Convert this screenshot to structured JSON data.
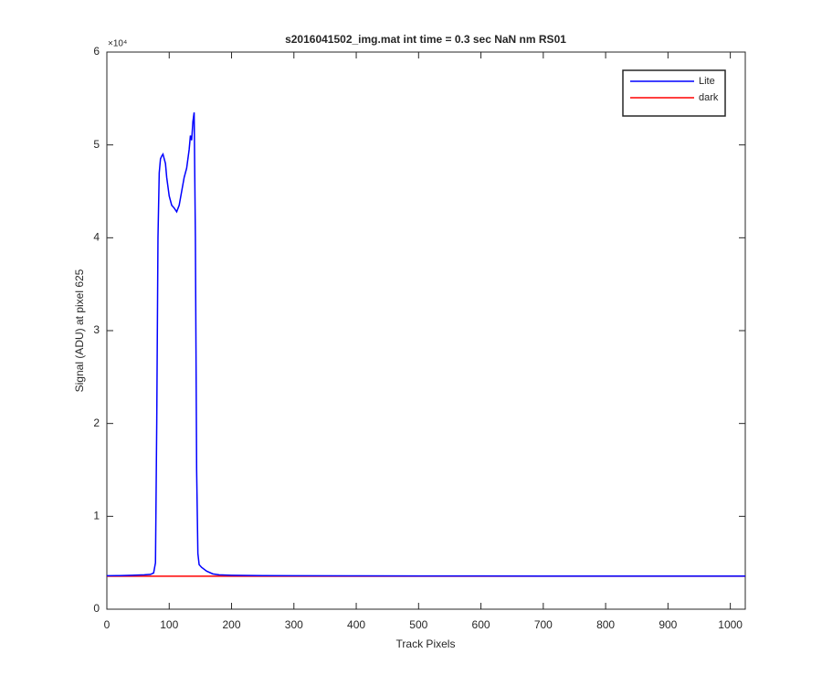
{
  "chart_data": {
    "type": "line",
    "title": "s2016041502_img.mat int time = 0.3 sec  NaN nm RS01",
    "x_label": "Track Pixels",
    "y_label": "Signal (ADU) at pixel 625",
    "y_exponent_label": "×10⁴",
    "x": [
      0,
      20,
      40,
      60,
      70,
      75,
      78,
      80,
      82,
      84,
      86,
      88,
      90,
      92,
      94,
      96,
      98,
      100,
      104,
      108,
      112,
      116,
      120,
      124,
      128,
      132,
      134,
      136,
      138,
      140,
      142,
      144,
      146,
      148,
      152,
      160,
      170,
      180,
      200,
      250,
      300,
      400,
      500,
      600,
      700,
      800,
      900,
      1000,
      1024
    ],
    "series": [
      {
        "name": "Lite",
        "color": "#0000ff",
        "values": [
          3600,
          3620,
          3650,
          3700,
          3750,
          3900,
          5000,
          20000,
          40000,
          47000,
          48500,
          48800,
          49000,
          48500,
          48000,
          46500,
          45500,
          44500,
          43500,
          43200,
          42800,
          43500,
          45000,
          46500,
          47500,
          49500,
          51000,
          50500,
          52500,
          53500,
          40000,
          15000,
          6000,
          4800,
          4500,
          4100,
          3800,
          3700,
          3650,
          3620,
          3600,
          3590,
          3580,
          3580,
          3570,
          3570,
          3560,
          3560,
          3560
        ]
      },
      {
        "name": "dark",
        "color": "#ff0000",
        "values": [
          3550,
          3550,
          3550,
          3550,
          3550,
          3550,
          3550,
          3550,
          3550,
          3550,
          3550,
          3550,
          3550,
          3550,
          3550,
          3550,
          3550,
          3550,
          3550,
          3550,
          3550,
          3550,
          3550,
          3550,
          3550,
          3550,
          3550,
          3550,
          3550,
          3550,
          3550,
          3550,
          3550,
          3550,
          3550,
          3550,
          3550,
          3550,
          3550,
          3550,
          3550,
          3550,
          3550,
          3550,
          3550,
          3550,
          3550,
          3550,
          3550
        ]
      }
    ],
    "xlim": [
      0,
      1024
    ],
    "xticks": [
      0,
      100,
      200,
      300,
      400,
      500,
      600,
      700,
      800,
      900,
      1000
    ],
    "ylim": [
      0,
      60000
    ],
    "yticks": [
      0,
      {
        "value": 10000,
        "label": "1"
      },
      {
        "value": 20000,
        "label": "2"
      },
      {
        "value": 30000,
        "label": "3"
      },
      {
        "value": 40000,
        "label": "4"
      },
      {
        "value": 50000,
        "label": "5"
      },
      {
        "value": 60000,
        "label": "6"
      }
    ],
    "grid": false,
    "legend": "northeast"
  }
}
